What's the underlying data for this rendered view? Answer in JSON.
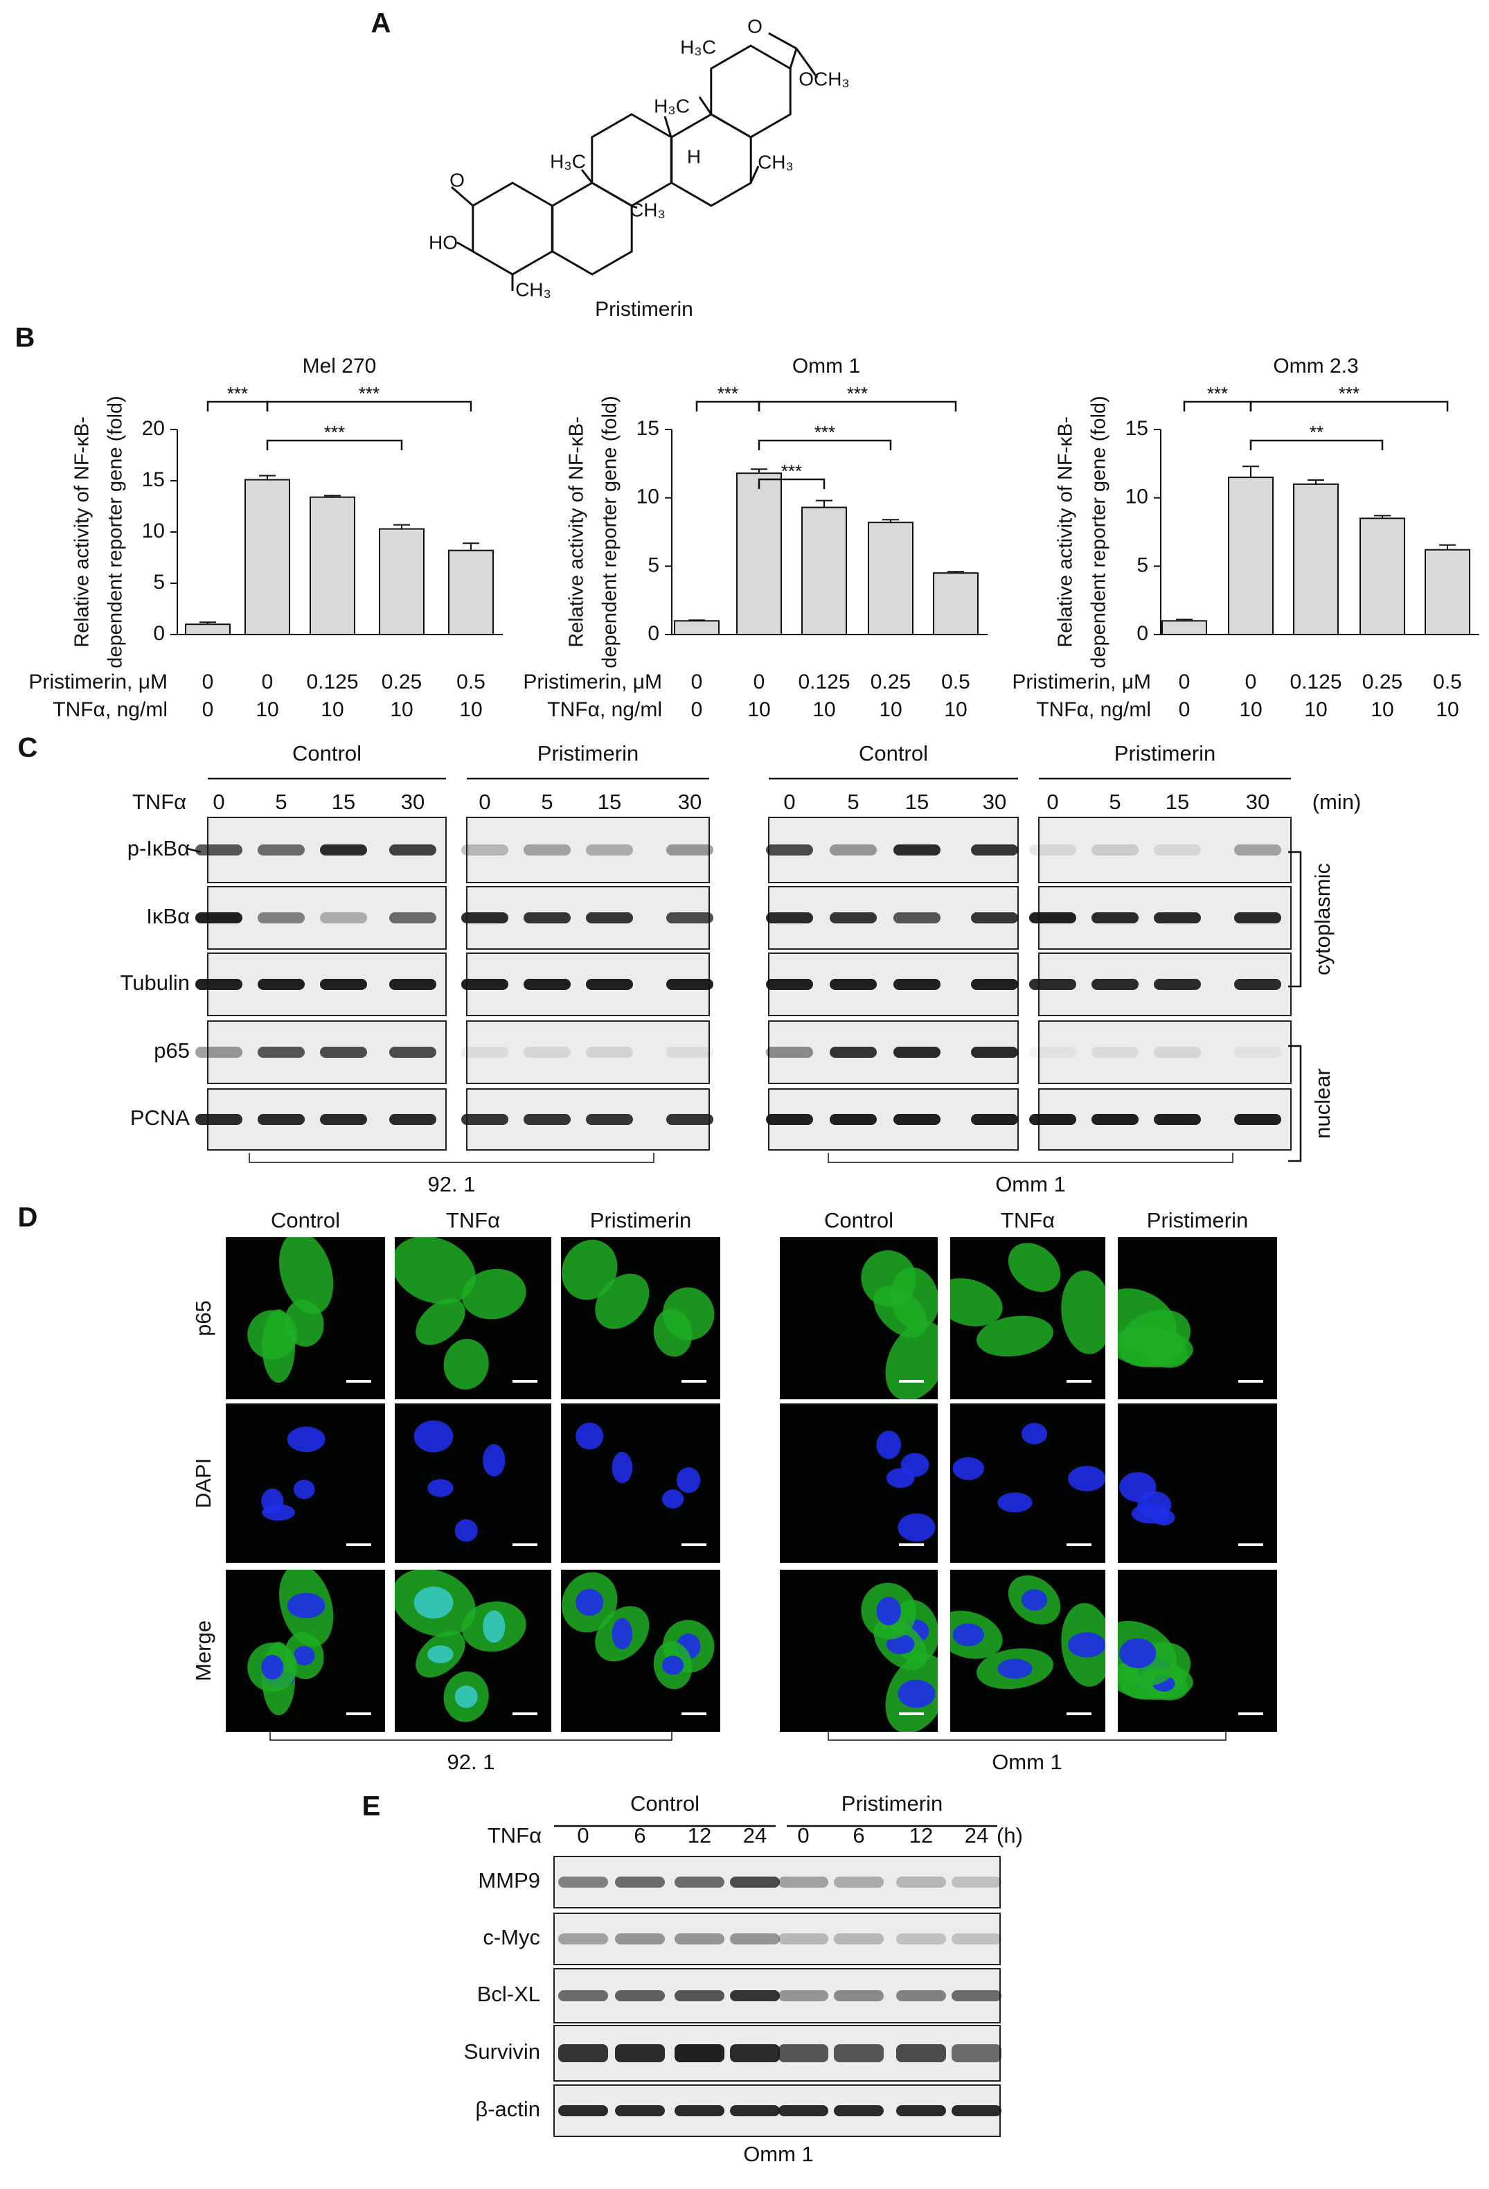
{
  "panel_labels": [
    "A",
    "B",
    "C",
    "D",
    "E"
  ],
  "structure": {
    "name": "Pristimerin",
    "atoms": [
      "H₃C",
      "O",
      "OCH₃",
      "H₃C",
      "H₃C",
      "H",
      "CH₃",
      "O",
      "HO",
      "CH₃",
      "CH₃"
    ]
  },
  "chart_data": [
    {
      "type": "bar",
      "title": "Mel 270",
      "y_label": [
        "Relative activity of NF-κB-",
        "dependent reporter gene (fold)"
      ],
      "row_labels": [
        "Pristimerin, μM",
        "TNFα, ng/ml"
      ],
      "categories": [
        "0",
        "0",
        "0.125",
        "0.25",
        "0.5"
      ],
      "categories_2": [
        "0",
        "10",
        "10",
        "10",
        "10"
      ],
      "values": [
        1,
        15.1,
        13.4,
        10.3,
        8.2
      ],
      "errors": [
        0.2,
        0.4,
        0.15,
        0.4,
        0.7
      ],
      "color": "#d9d9d9",
      "ylim": [
        0,
        20
      ],
      "yticks": [
        0,
        5,
        10,
        15,
        20
      ],
      "annotations": [
        {
          "text": "***",
          "from": 0,
          "to": 1
        },
        {
          "text": "***",
          "from": 1,
          "to": 4
        },
        {
          "text": "***",
          "from": 1,
          "to": 3
        }
      ]
    },
    {
      "type": "bar",
      "title": "Omm 1",
      "y_label": [
        "Relative activity of NF-κB-",
        "dependent reporter gene (fold)"
      ],
      "row_labels": [
        "Pristimerin, μM",
        "TNFα, ng/ml"
      ],
      "categories": [
        "0",
        "0",
        "0.125",
        "0.25",
        "0.5"
      ],
      "categories_2": [
        "0",
        "10",
        "10",
        "10",
        "10"
      ],
      "values": [
        1,
        11.8,
        9.3,
        8.2,
        4.5
      ],
      "errors": [
        0.05,
        0.3,
        0.5,
        0.2,
        0.1
      ],
      "color": "#d9d9d9",
      "ylim": [
        0,
        15
      ],
      "yticks": [
        0,
        5,
        10,
        15
      ],
      "annotations": [
        {
          "text": "***",
          "from": 0,
          "to": 1
        },
        {
          "text": "***",
          "from": 1,
          "to": 4
        },
        {
          "text": "***",
          "from": 1,
          "to": 3
        },
        {
          "text": "***",
          "from": 1,
          "to": 2
        }
      ]
    },
    {
      "type": "bar",
      "title": "Omm 2.3",
      "y_label": [
        "Relative activity of NF-κB-",
        "dependent reporter gene (fold)"
      ],
      "row_labels": [
        "Pristimerin, μM",
        "TNFα, ng/ml"
      ],
      "categories": [
        "0",
        "0",
        "0.125",
        "0.25",
        "0.5"
      ],
      "categories_2": [
        "0",
        "10",
        "10",
        "10",
        "10"
      ],
      "values": [
        1,
        11.5,
        11,
        8.5,
        6.2
      ],
      "errors": [
        0.1,
        0.8,
        0.3,
        0.2,
        0.35
      ],
      "color": "#d9d9d9",
      "ylim": [
        0,
        15
      ],
      "yticks": [
        0,
        5,
        10,
        15
      ],
      "annotations": [
        {
          "text": "***",
          "from": 0,
          "to": 1
        },
        {
          "text": "***",
          "from": 1,
          "to": 4
        },
        {
          "text": "**",
          "from": 1,
          "to": 3
        }
      ]
    }
  ],
  "blot_c": {
    "groups": [
      "Control",
      "Pristimerin",
      "Control",
      "Pristimerin"
    ],
    "treatment": "TNFα",
    "times": [
      "0",
      "5",
      "15",
      "30",
      "0",
      "5",
      "15",
      "30",
      "0",
      "5",
      "15",
      "30",
      "0",
      "5",
      "15",
      "30"
    ],
    "unit": "(min)",
    "rows": [
      "p-IκBα",
      "IκBα",
      "Tubulin",
      "p65",
      "PCNA"
    ],
    "fractions": [
      "cytoplasmic",
      "nuclear"
    ],
    "cell_lines": [
      "92. 1",
      "Omm 1"
    ]
  },
  "if_d": {
    "columns": [
      "Control",
      "TNFα",
      "Pristimerin",
      "Control",
      "TNFα",
      "Pristimerin"
    ],
    "rows": [
      "p65",
      "DAPI",
      "Merge"
    ],
    "cell_lines": [
      "92. 1",
      "Omm 1"
    ]
  },
  "blot_e": {
    "groups": [
      "Control",
      "Pristimerin"
    ],
    "treatment": "TNFα",
    "times": [
      "0",
      "6",
      "12",
      "24",
      "0",
      "6",
      "12",
      "24"
    ],
    "unit": "(h)",
    "rows": [
      "MMP9",
      "c-Myc",
      "Bcl-XL",
      "Survivin",
      "β-actin"
    ],
    "cell_line": "Omm 1"
  }
}
